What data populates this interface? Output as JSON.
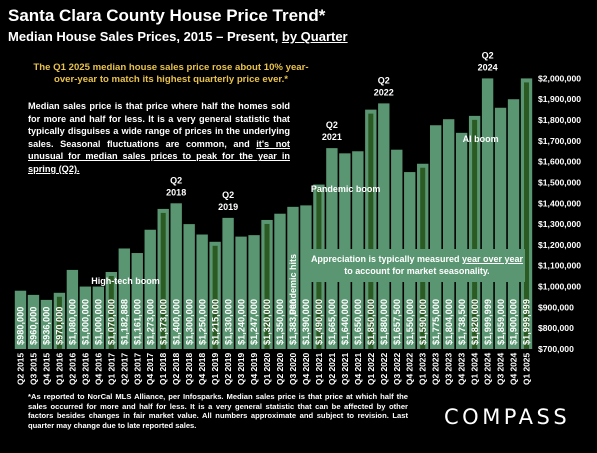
{
  "header": {
    "title": "Santa Clara County House Price Trend*",
    "subtitle_main": "Median House Sales Prices, 2015 – Present, ",
    "subtitle_link": "by Quarter"
  },
  "callout": "The Q1 2025 median house sales price rose about 10% year-over-year to match its highest quarterly price ever.*",
  "description": {
    "part1": "Median sales price is that price where half the homes sold for more and half for less. It is a very general statistic that typically disguises a wide range of prices in the underlying sales. Seasonal fluctuations are common, and ",
    "part2": "it's not unusual for median sales prices to peak for the year in spring (Q2)."
  },
  "note_box": {
    "line1_pre": "Appreciation is typically measured ",
    "line1_link": "year over year",
    "line2": "to account for market seasonality."
  },
  "footnote": "*As reported to NorCal MLS Alliance, per Infosparks. Median sales price is that price at which half the sales occurred for more and half for less. It is a very general statistic that can be affected by other factors besides changes in fair market value. All numbers approximate and subject to revision. Last quarter may change due to late reported sales.",
  "brand": "COMPASS",
  "colors": {
    "bar": "#5a9672",
    "bar_highlight": "#2b5a23",
    "background": "#000000",
    "callout_text": "#e8c24a"
  },
  "chart_data": {
    "type": "bar",
    "categories": [
      "Q2 2015",
      "Q3 2015",
      "Q4 2015",
      "Q1 2016",
      "Q2 2016",
      "Q3 2016",
      "Q4 2016",
      "Q1 2017",
      "Q2 2017",
      "Q3 2017",
      "Q4 2017",
      "Q1 2018",
      "Q2 2018",
      "Q3 2018",
      "Q4 2018",
      "Q1 2019",
      "Q2 2019",
      "Q3 2019",
      "Q4 2019",
      "Q1 2020",
      "Q2 2020",
      "Q3 2020",
      "Q4 2020",
      "Q1 2021",
      "Q2 2021",
      "Q3 2021",
      "Q4 2021",
      "Q1 2022",
      "Q2 2022",
      "Q3 2022",
      "Q4 2022",
      "Q1 2023",
      "Q2 2023",
      "Q3 2023",
      "Q4 2023",
      "Q1 2024",
      "Q2 2024",
      "Q3 2024",
      "Q4 2024",
      "Q1 2025"
    ],
    "values": [
      980000,
      960000,
      936000,
      970000,
      1080000,
      1000000,
      1000000,
      1070000,
      1182888,
      1161000,
      1273000,
      1373000,
      1400000,
      1300000,
      1250000,
      1215000,
      1330000,
      1240000,
      1247000,
      1320000,
      1350000,
      1383000,
      1390000,
      1490000,
      1665000,
      1640000,
      1650000,
      1850000,
      1880000,
      1657500,
      1550000,
      1590000,
      1775000,
      1804000,
      1738500,
      1820000,
      1999999,
      1859000,
      1900000,
      1999999
    ],
    "labels": [
      "$980,000",
      "$960,000",
      "$936,000",
      "$970,000",
      "$1,080,000",
      "$1,000,000",
      "$1,000,000",
      "$1,070,000",
      "$1,182,888",
      "$1,161,000",
      "$1,273,000",
      "$1,373,000",
      "$1,400,000",
      "$1,300,000",
      "$1,250,000",
      "$1,215,000",
      "$1,330,000",
      "$1,240,000",
      "$1,247,000",
      "$1,320,000",
      "$1,350,000",
      "$1,383,000",
      "$1,390,000",
      "$1,490,000",
      "$1,665,000",
      "$1,640,000",
      "$1,650,000",
      "$1,850,000",
      "$1,880,000",
      "$1,657,500",
      "$1,550,000",
      "$1,590,000",
      "$1,775,000",
      "$1,804,000",
      "$1,738,500",
      "$1,820,000",
      "$1,999,999",
      "$1,859,000",
      "$1,900,000",
      "$1,999,999"
    ],
    "highlighted": [
      "Q1 2016",
      "Q1 2017",
      "Q1 2018",
      "Q1 2019",
      "Q1 2020",
      "Q1 2021",
      "Q1 2022",
      "Q1 2023",
      "Q1 2024",
      "Q1 2025"
    ],
    "ylim": [
      700000,
      2050000
    ],
    "yticks": [
      700000,
      800000,
      900000,
      1000000,
      1100000,
      1200000,
      1300000,
      1400000,
      1500000,
      1600000,
      1700000,
      1800000,
      1900000,
      2000000
    ],
    "ytick_labels": [
      "$700,000",
      "$800,000",
      "$900,000",
      "$1,000,000",
      "$1,100,000",
      "$1,200,000",
      "$1,300,000",
      "$1,400,000",
      "$1,500,000",
      "$1,600,000",
      "$1,700,000",
      "$1,800,000",
      "$1,900,000",
      "$2,000,000"
    ],
    "annotations": [
      {
        "category": "Q3 2017",
        "text": "High-tech boom"
      },
      {
        "category": "Q1 2021",
        "text": "Pandemic boom"
      },
      {
        "category": "Q3 2020",
        "text": "Pandemic hits"
      },
      {
        "category": "Q1 2024",
        "text": "AI boom"
      }
    ],
    "peak_labels": [
      {
        "category": "Q2 2018",
        "line1": "Q2",
        "line2": "2018"
      },
      {
        "category": "Q2 2019",
        "line1": "Q2",
        "line2": "2019"
      },
      {
        "category": "Q2 2021",
        "line1": "Q2",
        "line2": "2021"
      },
      {
        "category": "Q2 2022",
        "line1": "Q2",
        "line2": "2022"
      },
      {
        "category": "Q2 2024",
        "line1": "Q2",
        "line2": "2024"
      }
    ],
    "grid": false
  }
}
